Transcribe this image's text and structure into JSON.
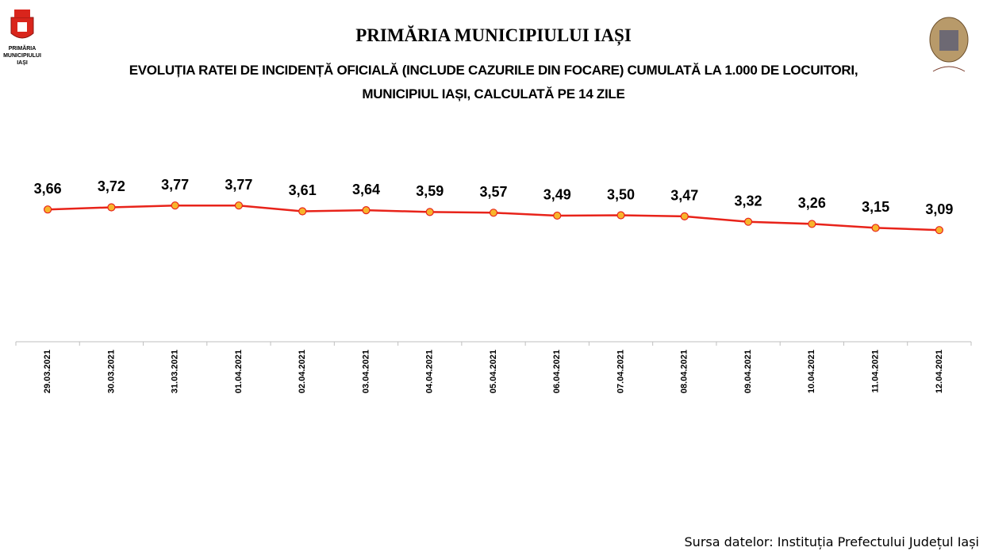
{
  "logo_text": "PRIMĂRIA MUNICIPIULUI IAȘI",
  "chart_data": {
    "type": "line",
    "header": "PRIMĂRIA MUNICIPIULUI IAȘI",
    "title": "EVOLUȚIA RATEI DE INCIDENȚĂ OFICIALĂ (INCLUDE CAZURILE DIN FOCARE) CUMULATĂ LA 1.000 DE LOCUITORI, MUNICIPIUL IAȘI, CALCULATĂ PE 14 ZILE",
    "categories": [
      "29.03.2021",
      "30.03.2021",
      "31.03.2021",
      "01.04.2021",
      "02.04.2021",
      "03.04.2021",
      "04.04.2021",
      "05.04.2021",
      "06.04.2021",
      "07.04.2021",
      "08.04.2021",
      "09.04.2021",
      "10.04.2021",
      "11.04.2021",
      "12.04.2021"
    ],
    "values": [
      3.66,
      3.72,
      3.77,
      3.77,
      3.61,
      3.64,
      3.59,
      3.57,
      3.49,
      3.5,
      3.47,
      3.32,
      3.26,
      3.15,
      3.09
    ],
    "value_labels": [
      "3,66",
      "3,72",
      "3,77",
      "3,77",
      "3,61",
      "3,64",
      "3,59",
      "3,57",
      "3,49",
      "3,50",
      "3,47",
      "3,32",
      "3,26",
      "3,15",
      "3,09"
    ],
    "color": "#e8231a",
    "marker_color": "#f7b52c",
    "ylim": [
      0,
      7
    ],
    "source": "Sursa datelor: Instituția Prefectului Județul Iași"
  }
}
